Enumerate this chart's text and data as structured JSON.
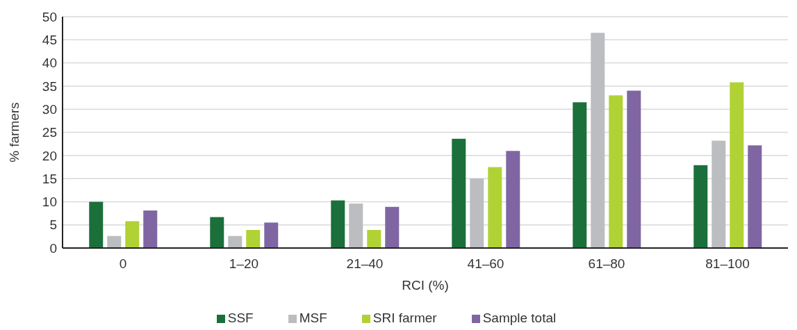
{
  "chart_data": {
    "type": "bar",
    "xlabel": "RCI (%)",
    "ylabel": "%  farmers",
    "categories": [
      "0",
      "1–20",
      "21–40",
      "41–60",
      "61–80",
      "81–100"
    ],
    "series": [
      {
        "name": "SSF",
        "color": "#1b6f3a",
        "values": [
          10,
          6.7,
          10.3,
          23.6,
          31.5,
          17.9
        ]
      },
      {
        "name": "MSF",
        "color": "#bcbdc0",
        "values": [
          2.6,
          2.6,
          9.6,
          15,
          46.5,
          23.2
        ]
      },
      {
        "name": "SRI farmer",
        "color": "#b0d234",
        "values": [
          5.8,
          3.9,
          3.9,
          17.5,
          33,
          35.8
        ]
      },
      {
        "name": "Sample total",
        "color": "#7f66a3",
        "values": [
          8.1,
          5.5,
          8.9,
          21,
          34,
          22.2
        ]
      }
    ],
    "ylim": [
      0,
      50
    ],
    "yticks": [
      0,
      5,
      10,
      15,
      20,
      25,
      30,
      35,
      40,
      45,
      50
    ],
    "grid": "y",
    "legend": "bottom"
  }
}
